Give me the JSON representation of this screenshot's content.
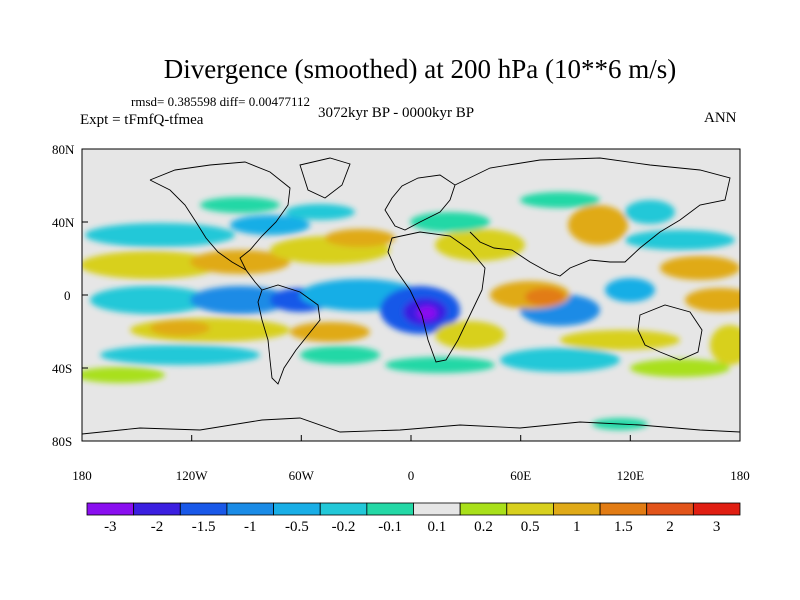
{
  "title": "Divergence (smoothed) at 200 hPa (10**6 m/s)",
  "stats": "rmsd= 0.385598 diff= 0.00477112",
  "experiment": "Expt = tFmfQ-tfmea",
  "period": "3072kyr BP - 0000kyr BP",
  "season": "ANN",
  "lat_labels": [
    "80N",
    "40N",
    "0",
    "40S",
    "80S"
  ],
  "lon_labels": [
    "180",
    "120W",
    "60W",
    "0",
    "60E",
    "120E",
    "180"
  ],
  "colorbar": {
    "labels": [
      "-3",
      "-2",
      "-1.5",
      "-1",
      "-0.5",
      "-0.2",
      "-0.1",
      "0.1",
      "0.2",
      "0.5",
      "1",
      "1.5",
      "2",
      "3"
    ],
    "colors": [
      "#8a0ff0",
      "#3b1fe0",
      "#1958e8",
      "#1a8be6",
      "#19aee6",
      "#22c8d8",
      "#24d8a6",
      "#e6e6e6",
      "#a9e01a",
      "#d8d01e",
      "#e0aa18",
      "#e27c14",
      "#e2541a",
      "#e01e12"
    ]
  },
  "map": {
    "background": "#e6e6e6",
    "coast_color": "#000000"
  }
}
